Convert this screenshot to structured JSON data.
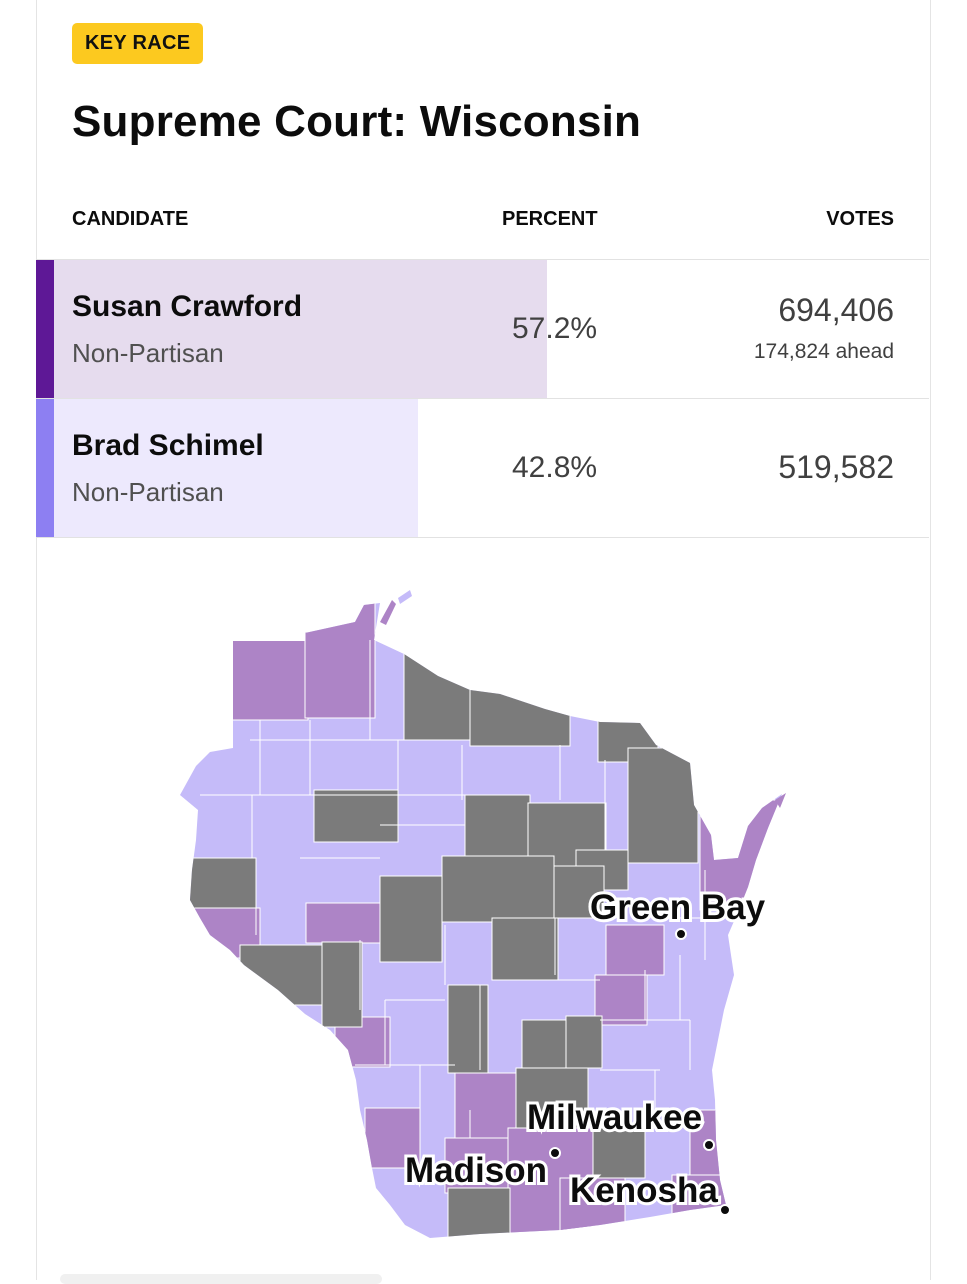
{
  "badge": "KEY RACE",
  "title": "Supreme Court: Wisconsin",
  "table": {
    "headers": {
      "candidate": "CANDIDATE",
      "percent": "PERCENT",
      "votes": "VOTES"
    },
    "rows": [
      {
        "name": "Susan Crawford",
        "party": "Non-Partisan",
        "percent": "57.2%",
        "percent_value": 57.2,
        "votes": "694,406",
        "lead": "174,824 ahead",
        "stripe_color": "#5e1896",
        "bar_color": "#e6dcee"
      },
      {
        "name": "Brad Schimel",
        "party": "Non-Partisan",
        "percent": "42.8%",
        "percent_value": 42.8,
        "votes": "519,582",
        "stripe_color": "#8d7ff2",
        "bar_color": "#ede9fd"
      }
    ]
  },
  "map": {
    "legend_colors": {
      "crawford_leading": "#ad84c6",
      "schimel_leading": "#c5bbf9",
      "not_reporting": "#7b7b7b"
    },
    "cities": [
      {
        "name": "Green Bay"
      },
      {
        "name": "Milwaukee"
      },
      {
        "name": "Madison"
      },
      {
        "name": "Kenosha"
      }
    ]
  }
}
